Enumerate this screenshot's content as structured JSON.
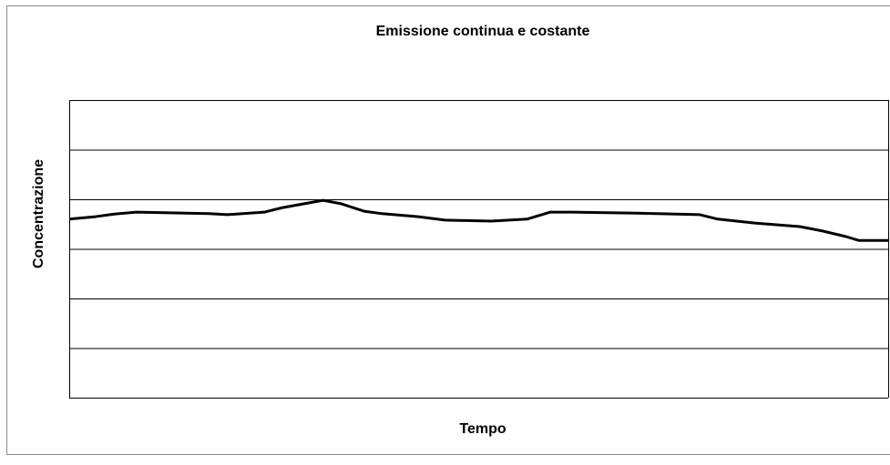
{
  "chart_data": {
    "type": "line",
    "title": "Emissione continua e costante",
    "xlabel": "Tempo",
    "ylabel": "Concentrazione",
    "x": [
      0,
      3.2,
      5.4,
      8.2,
      17.1,
      19.3,
      23.8,
      26,
      28.7,
      31,
      33.2,
      36,
      38.2,
      42.6,
      45.9,
      51.5,
      55.9,
      58.7,
      61.5,
      69.3,
      77,
      79.2,
      83.7,
      89.2,
      92,
      94.8,
      96.4,
      100
    ],
    "values": [
      3.6,
      3.65,
      3.7,
      3.74,
      3.71,
      3.69,
      3.74,
      3.83,
      3.91,
      3.98,
      3.91,
      3.76,
      3.71,
      3.65,
      3.58,
      3.56,
      3.6,
      3.74,
      3.74,
      3.72,
      3.69,
      3.6,
      3.52,
      3.45,
      3.36,
      3.25,
      3.17,
      3.17
    ],
    "color": "#000000",
    "xlim": [
      0,
      100
    ],
    "ylim": [
      0,
      6
    ],
    "yticks": [
      0,
      1,
      2,
      3,
      4,
      5,
      6
    ],
    "grid": true
  }
}
